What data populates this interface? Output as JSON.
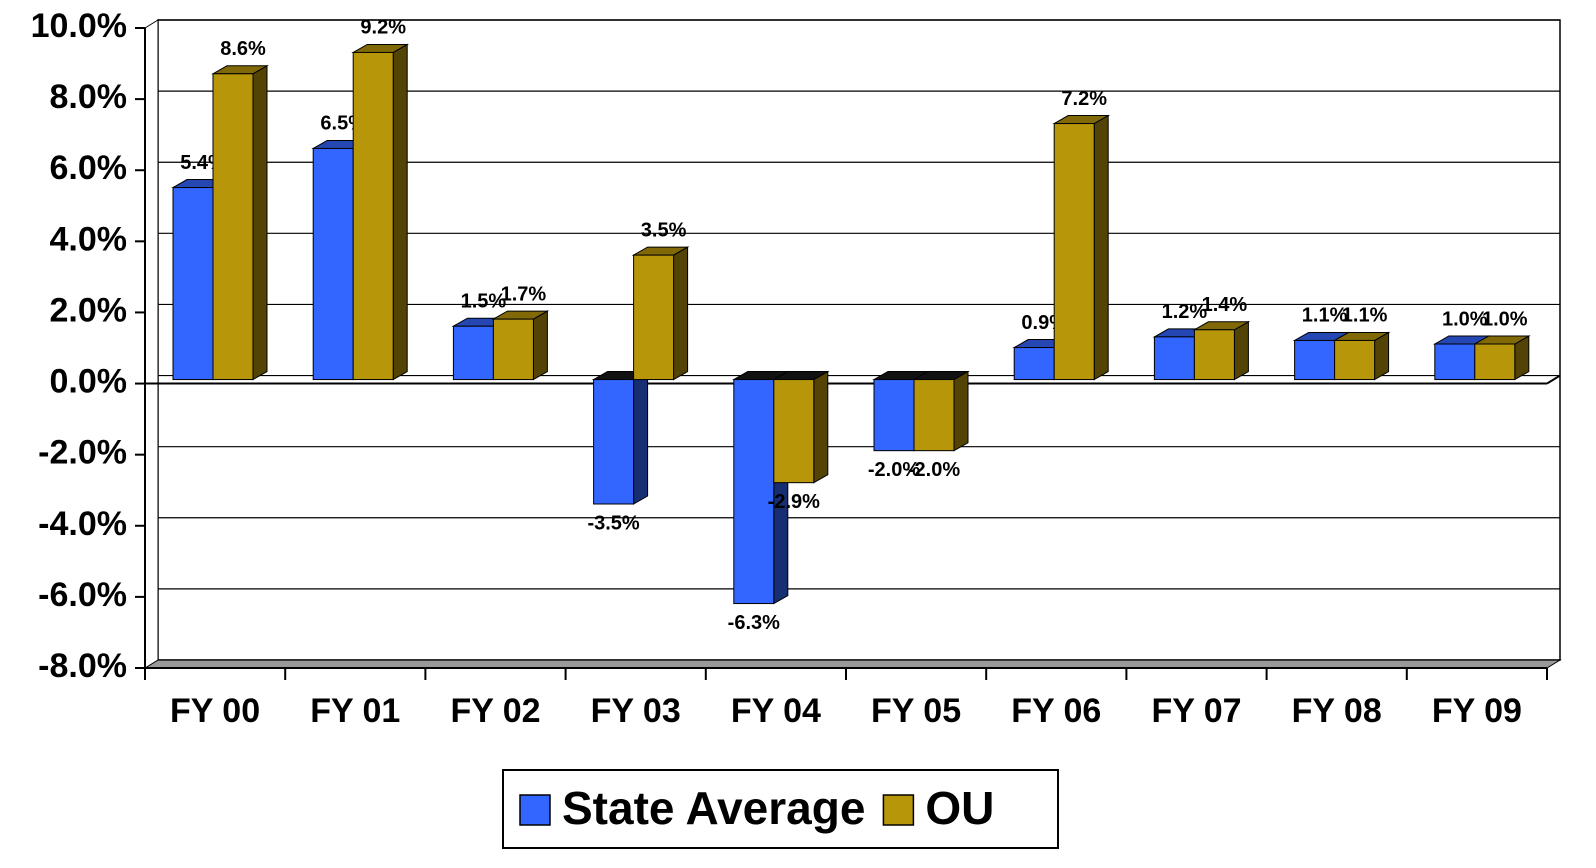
{
  "chart_data": {
    "type": "bar3d",
    "categories": [
      "FY 00",
      "FY 01",
      "FY 02",
      "FY 03",
      "FY 04",
      "FY 05",
      "FY 06",
      "FY 07",
      "FY 08",
      "FY 09"
    ],
    "series": [
      {
        "name": "State Average",
        "color": "#3366ff",
        "values": [
          5.4,
          6.5,
          1.5,
          -3.5,
          -6.3,
          -2.0,
          0.9,
          1.2,
          1.1,
          1.0
        ],
        "value_labels": [
          "5.4%",
          "6.5%",
          "1.5%",
          "-3.5%",
          "-6.3%",
          "-2.0%",
          "0.9%",
          "1.2%",
          "1.1%",
          "1.0%"
        ]
      },
      {
        "name": "OU",
        "color": "#b8960a",
        "values": [
          8.6,
          9.2,
          1.7,
          3.5,
          -2.9,
          -2.0,
          7.2,
          1.4,
          1.1,
          1.0
        ],
        "value_labels": [
          "8.6%",
          "9.2%",
          "1.7%",
          "3.5%",
          "-2.9%",
          "-2.0%",
          "7.2%",
          "1.4%",
          "1.1%",
          "1.0%"
        ]
      }
    ],
    "ylim": [
      -8,
      10
    ],
    "yticks": [
      {
        "value": -8,
        "label": "-8.0%"
      },
      {
        "value": -6,
        "label": "-6.0%"
      },
      {
        "value": -4,
        "label": "-4.0%"
      },
      {
        "value": -2,
        "label": "-2.0%"
      },
      {
        "value": 0,
        "label": "0.0%"
      },
      {
        "value": 2,
        "label": "2.0%"
      },
      {
        "value": 4,
        "label": "4.0%"
      },
      {
        "value": 6,
        "label": "6.0%"
      },
      {
        "value": 8,
        "label": "8.0%"
      },
      {
        "value": 10,
        "label": "10.0%"
      }
    ],
    "grid": true,
    "legend": "bottom"
  }
}
